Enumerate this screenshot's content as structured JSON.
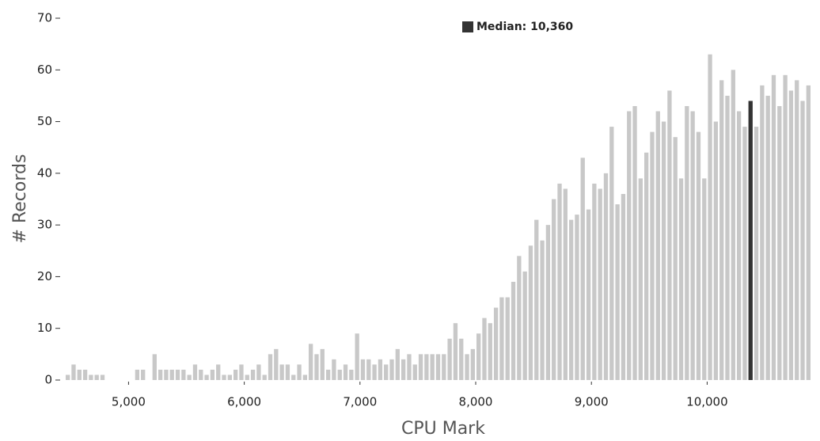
{
  "chart_data": {
    "type": "histogram",
    "x_label": "CPU Mark",
    "y_label": "# Records",
    "bins": [
      4450,
      4500,
      4550,
      4600,
      4650,
      4700,
      4750,
      4800,
      4850,
      4900,
      4950,
      5000,
      5050,
      5100,
      5150,
      5200,
      5250,
      5300,
      5350,
      5400,
      5450,
      5500,
      5550,
      5600,
      5650,
      5700,
      5750,
      5800,
      5850,
      5900,
      5950,
      6000,
      6050,
      6100,
      6150,
      6200,
      6250,
      6300,
      6350,
      6400,
      6450,
      6500,
      6550,
      6600,
      6650,
      6700,
      6750,
      6800,
      6850,
      6900,
      6950,
      7000,
      7050,
      7100,
      7150,
      7200,
      7250,
      7300,
      7350,
      7400,
      7450,
      7500,
      7550,
      7600,
      7650,
      7700,
      7750,
      7800,
      7850,
      7900,
      7950,
      8000,
      8050,
      8100,
      8150,
      8200,
      8250,
      8300,
      8350,
      8400,
      8450,
      8500,
      8550,
      8600,
      8650,
      8700,
      8750,
      8800,
      8850,
      8900,
      8950,
      9000,
      9050,
      9100,
      9150,
      9200,
      9250,
      9300,
      9350,
      9400,
      9450,
      9500,
      9550,
      9600,
      9650,
      9700,
      9750,
      9800,
      9850,
      9900,
      9950,
      10000,
      10050,
      10100,
      10150,
      10200,
      10250,
      10300,
      10350,
      10400,
      10450,
      10500,
      10550,
      10600,
      10650,
      10700,
      10750,
      10800,
      10850,
      10900
    ],
    "values": [
      1,
      3,
      2,
      2,
      1,
      1,
      1,
      0,
      0,
      0,
      0,
      0,
      2,
      2,
      0,
      5,
      2,
      2,
      2,
      2,
      2,
      1,
      3,
      2,
      1,
      2,
      3,
      1,
      1,
      2,
      3,
      1,
      2,
      3,
      1,
      5,
      6,
      3,
      3,
      1,
      3,
      1,
      7,
      5,
      6,
      2,
      4,
      2,
      3,
      2,
      9,
      4,
      4,
      3,
      4,
      3,
      4,
      6,
      4,
      5,
      3,
      5,
      5,
      5,
      5,
      5,
      8,
      11,
      8,
      5,
      6,
      9,
      12,
      11,
      14,
      16,
      16,
      19,
      24,
      21,
      26,
      31,
      27,
      30,
      35,
      38,
      37,
      31,
      32,
      43,
      33,
      38,
      37,
      40,
      49,
      34,
      36,
      52,
      53,
      39,
      44,
      48,
      52,
      50,
      56,
      47,
      39,
      53,
      52,
      48,
      39,
      63,
      50,
      58,
      55,
      60,
      52,
      49,
      54,
      49,
      57,
      55,
      59,
      53,
      59,
      56,
      58,
      54,
      57
    ],
    "color": "#c8c8c8",
    "highlight": {
      "label": "Median: 10,360",
      "value": 10360,
      "color": "#333333"
    },
    "xlim": [
      4450,
      10900
    ],
    "ylim": [
      0,
      70
    ],
    "xticks": [
      {
        "value": 5000,
        "label": "5,000"
      },
      {
        "value": 6000,
        "label": "6,000"
      },
      {
        "value": 7000,
        "label": "7,000"
      },
      {
        "value": 8000,
        "label": "8,000"
      },
      {
        "value": 9000,
        "label": "9,000"
      },
      {
        "value": 10000,
        "label": "10,000"
      }
    ],
    "yticks": [
      0,
      10,
      20,
      30,
      40,
      50,
      60,
      70
    ]
  }
}
